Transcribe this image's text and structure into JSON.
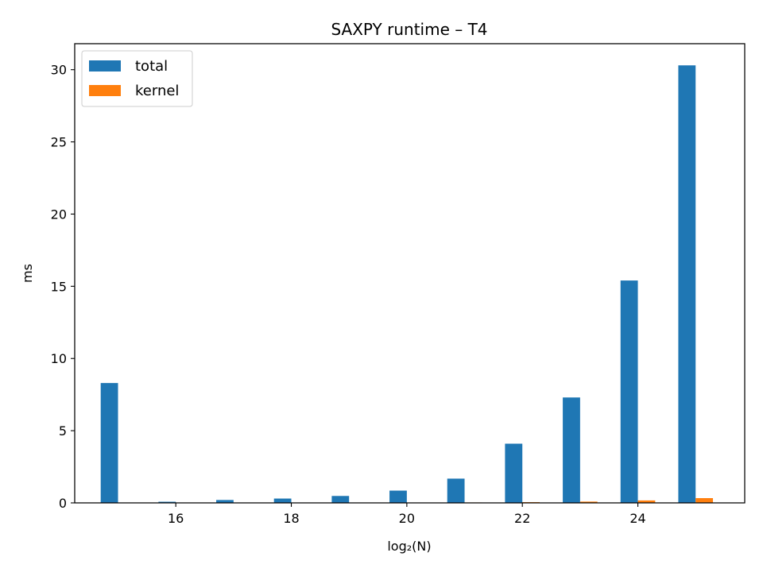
{
  "chart_data": {
    "type": "bar",
    "title": "SAXPY runtime – T4",
    "xlabel": "log₂(N)",
    "ylabel": "ms",
    "x": [
      15,
      16,
      17,
      18,
      19,
      20,
      21,
      22,
      23,
      24,
      25
    ],
    "series": [
      {
        "name": "total",
        "color": "#1f77b4",
        "values": [
          8.3,
          0.08,
          0.2,
          0.3,
          0.48,
          0.85,
          1.68,
          4.1,
          7.3,
          15.4,
          30.3
        ]
      },
      {
        "name": "kernel",
        "color": "#ff7f0e",
        "values": [
          0.01,
          0.01,
          0.01,
          0.01,
          0.01,
          0.02,
          0.03,
          0.05,
          0.09,
          0.17,
          0.33
        ]
      }
    ],
    "xlim": [
      14.25,
      25.85
    ],
    "ylim": [
      0,
      31.8
    ],
    "xticks": [
      16,
      18,
      20,
      22,
      24
    ],
    "yticks": [
      0,
      5,
      10,
      15,
      20,
      25,
      30
    ],
    "grid": false,
    "legend": "top-left"
  }
}
